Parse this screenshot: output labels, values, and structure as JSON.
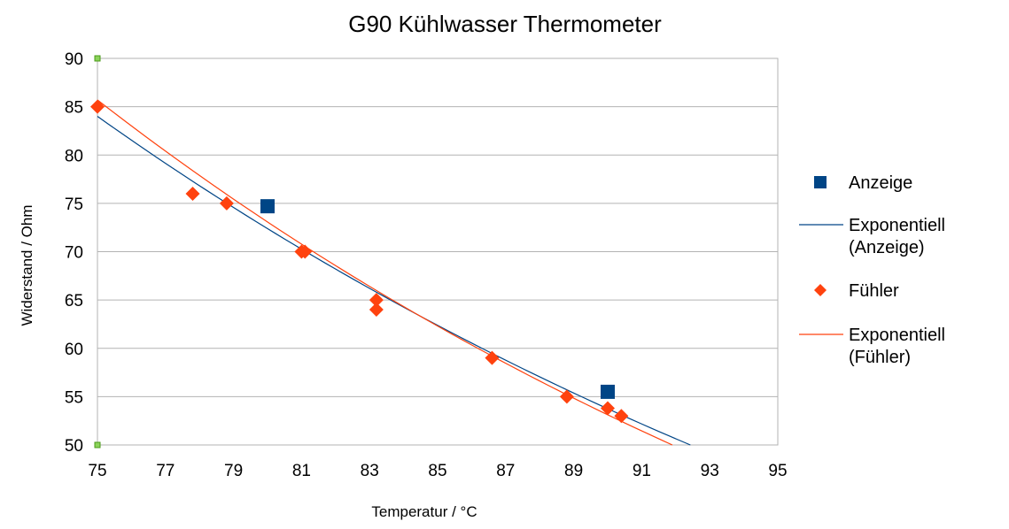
{
  "chart_data": {
    "type": "scatter",
    "title": "G90 Kühlwasser Thermometer",
    "xlabel": "Temperatur / °C",
    "ylabel": "Widerstand / Ohm",
    "xlim": [
      75,
      95
    ],
    "ylim": [
      50,
      90
    ],
    "x_ticks": [
      "75",
      "77",
      "79",
      "81",
      "83",
      "85",
      "87",
      "89",
      "91",
      "93",
      "95"
    ],
    "y_ticks": [
      "50",
      "55",
      "60",
      "65",
      "70",
      "75",
      "80",
      "85",
      "90"
    ],
    "grid": "horizontal",
    "legend_position": "right",
    "series": [
      {
        "name": "Anzeige",
        "marker": "square",
        "color": "#004586",
        "points": [
          [
            80,
            74.7
          ],
          [
            90,
            55.5
          ]
        ]
      },
      {
        "name": "Fühler",
        "marker": "diamond",
        "color": "#ff420e",
        "points": [
          [
            75,
            85
          ],
          [
            77.8,
            76
          ],
          [
            78.8,
            75
          ],
          [
            81,
            70
          ],
          [
            81.1,
            70
          ],
          [
            83.2,
            65
          ],
          [
            83.2,
            64
          ],
          [
            86.6,
            59
          ],
          [
            88.8,
            55
          ],
          [
            90,
            53.8
          ],
          [
            90.4,
            53
          ]
        ]
      }
    ],
    "trendlines": [
      {
        "name": "Exponentiell (Anzeige)",
        "type": "exponential",
        "color": "#004586",
        "points": [
          [
            75,
            84
          ],
          [
            92.43,
            50
          ]
        ]
      },
      {
        "name": "Exponentiell (Fühler)",
        "type": "exponential",
        "color": "#ff420e",
        "points": [
          [
            75,
            85.7
          ],
          [
            91.9,
            50
          ]
        ]
      }
    ],
    "legend": [
      {
        "label": "Anzeige",
        "kind": "square",
        "color": "#004586"
      },
      {
        "label": "Exponentiell (Anzeige)",
        "kind": "line",
        "color": "#004586"
      },
      {
        "label": "Fühler",
        "kind": "diamond",
        "color": "#ff420e"
      },
      {
        "label": "Exponentiell (Fühler)",
        "kind": "line",
        "color": "#ff420e"
      }
    ]
  }
}
